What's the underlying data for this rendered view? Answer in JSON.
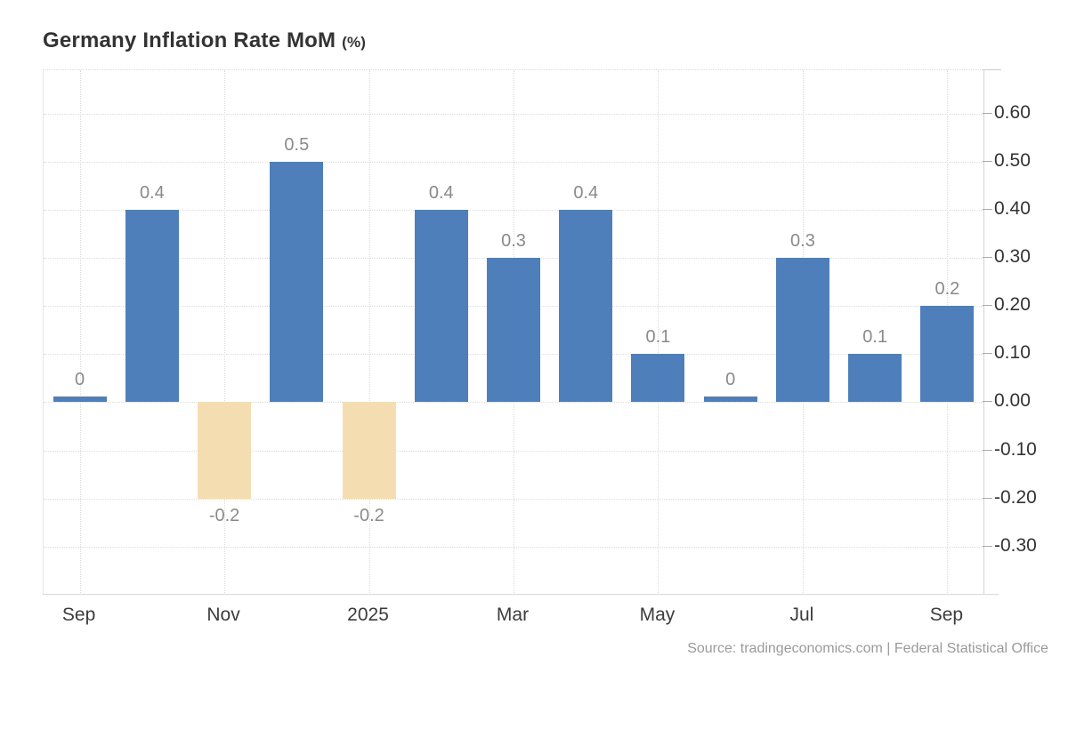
{
  "header": {
    "title": "Germany Inflation Rate MoM",
    "unit": "(%)"
  },
  "footer": {
    "source": "Source: tradingeconomics.com | Federal Statistical Office"
  },
  "chart_data": {
    "type": "bar",
    "title": "Germany Inflation Rate MoM (%)",
    "xlabel": "",
    "ylabel": "",
    "values": [
      0,
      0.4,
      -0.2,
      0.5,
      -0.2,
      0.4,
      0.3,
      0.4,
      0.1,
      0,
      0.3,
      0.1,
      0.2
    ],
    "bar_labels": [
      "0",
      "0.4",
      "-0.2",
      "0.5",
      "-0.2",
      "0.4",
      "0.3",
      "0.4",
      "0.1",
      "0",
      "0.3",
      "0.1",
      "0.2"
    ],
    "x_tick_labels": [
      "Sep",
      "Nov",
      "2025",
      "Mar",
      "May",
      "Jul",
      "Sep"
    ],
    "x_tick_indices": [
      0,
      2,
      4,
      6,
      8,
      10,
      12
    ],
    "y_ticks": [
      0.6,
      0.5,
      0.4,
      0.3,
      0.2,
      0.1,
      0.0,
      -0.1,
      -0.2,
      -0.3
    ],
    "y_tick_labels": [
      "0.60",
      "0.50",
      "0.40",
      "0.30",
      "0.20",
      "0.10",
      "0.00",
      "-0.10",
      "-0.20",
      "-0.30"
    ],
    "ylim": [
      -0.4,
      0.69
    ],
    "grid": "dotted",
    "legend": "none",
    "colors": {
      "positive_bar": "#4e7fba",
      "negative_bar": "#f4ddb0"
    },
    "source": "Source: tradingeconomics.com | Federal Statistical Office"
  }
}
